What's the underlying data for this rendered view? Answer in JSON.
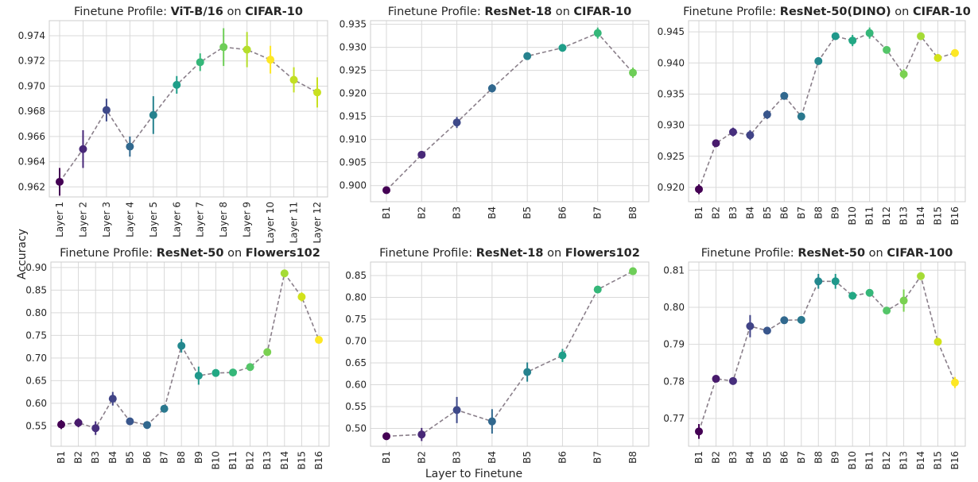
{
  "figure": {
    "ylabel": "Accuracy",
    "xlabel": "Layer to Finetune",
    "title_prefix": "Finetune Profile: ",
    "title_joiner": " on "
  },
  "colors": {
    "line": "#8a7f8a",
    "grid": "#d9d9d9",
    "axis_border": "#cccccc",
    "text": "#262626",
    "errorbar_note": "error bars drawn in the marker colour",
    "palette": "viridis"
  },
  "chart_data": [
    {
      "type": "line-errorbar",
      "title_model": "ViT-B/16",
      "title_dataset": "CIFAR-10",
      "categories": [
        "Layer 1",
        "Layer 2",
        "Layer 3",
        "Layer 4",
        "Layer 5",
        "Layer 6",
        "Layer 7",
        "Layer 8",
        "Layer 9",
        "Layer 10",
        "Layer 11",
        "Layer 12"
      ],
      "values": [
        0.9624,
        0.965,
        0.9681,
        0.9652,
        0.9677,
        0.9701,
        0.9719,
        0.9731,
        0.9729,
        0.9721,
        0.9705,
        0.9695
      ],
      "errors": [
        0.0011,
        0.0015,
        0.0009,
        0.0008,
        0.0015,
        0.0007,
        0.0007,
        0.0015,
        0.0014,
        0.0011,
        0.001,
        0.0012
      ],
      "colors": [
        "#440154",
        "#482878",
        "#3e4989",
        "#31688e",
        "#26828e",
        "#1f9e89",
        "#35b779",
        "#6ece58",
        "#b5de2b",
        "#fde725",
        "#c2df23",
        "#c8e020"
      ],
      "yticks": [
        0.962,
        0.964,
        0.966,
        0.968,
        0.97,
        0.972,
        0.974
      ],
      "ylim": [
        0.9612,
        0.9752
      ],
      "rotate_xticks": true,
      "grid": true
    },
    {
      "type": "line-errorbar",
      "title_model": "ResNet-18",
      "title_dataset": "CIFAR-10",
      "categories": [
        "B1",
        "B2",
        "B3",
        "B4",
        "B5",
        "B6",
        "B7",
        "B8"
      ],
      "values": [
        0.899,
        0.9067,
        0.9137,
        0.9211,
        0.9281,
        0.9299,
        0.9331,
        0.9245
      ],
      "errors": [
        0.0006,
        0.0005,
        0.0012,
        0.0009,
        0.0006,
        0.0005,
        0.0012,
        0.0011
      ],
      "colors": [
        "#440154",
        "#482878",
        "#3e4989",
        "#31688e",
        "#26828e",
        "#1f9e89",
        "#35b779",
        "#6ece58"
      ],
      "yticks": [
        0.9,
        0.905,
        0.91,
        0.915,
        0.92,
        0.925,
        0.93,
        0.935
      ],
      "ylim": [
        0.8965,
        0.9358
      ],
      "rotate_xticks": true,
      "grid": true
    },
    {
      "type": "line-errorbar",
      "title_model": "ResNet-50(DINO)",
      "title_dataset": "CIFAR-10",
      "categories": [
        "B1",
        "B2",
        "B3",
        "B4",
        "B5",
        "B6",
        "B7",
        "B8",
        "B9",
        "B10",
        "B11",
        "B12",
        "B13",
        "B14",
        "B15",
        "B16"
      ],
      "values": [
        0.9197,
        0.9271,
        0.9289,
        0.9284,
        0.9317,
        0.9347,
        0.9314,
        0.9403,
        0.9443,
        0.9436,
        0.9448,
        0.9421,
        0.9382,
        0.9443,
        0.9408,
        0.9416
      ],
      "errors": [
        0.0008,
        0.0005,
        0.0007,
        0.0008,
        0.0007,
        0.0005,
        0.0006,
        0.0004,
        0.0004,
        0.0009,
        0.0009,
        0.0004,
        0.0008,
        0.0004,
        0.0006,
        0.0005
      ],
      "colors": [
        "#440154",
        "#481a6c",
        "#472f7d",
        "#414487",
        "#39568c",
        "#31688e",
        "#2a788e",
        "#23888e",
        "#1f988b",
        "#22a884",
        "#35b779",
        "#54c568",
        "#7ad151",
        "#a5db36",
        "#d2e21b",
        "#fde725"
      ],
      "yticks": [
        0.92,
        0.925,
        0.93,
        0.935,
        0.94,
        0.945
      ],
      "ylim": [
        0.9177,
        0.9468
      ],
      "rotate_xticks": true,
      "grid": true
    },
    {
      "type": "line-errorbar",
      "title_model": "ResNet-50",
      "title_dataset": "Flowers102",
      "categories": [
        "B1",
        "B2",
        "B3",
        "B4",
        "B5",
        "B6",
        "B7",
        "B8",
        "B9",
        "B10",
        "B11",
        "B12",
        "B13",
        "B14",
        "B15",
        "B16"
      ],
      "values": [
        0.553,
        0.557,
        0.545,
        0.61,
        0.56,
        0.552,
        0.588,
        0.727,
        0.661,
        0.667,
        0.668,
        0.68,
        0.713,
        0.887,
        0.835,
        0.74
      ],
      "errors": [
        0.01,
        0.01,
        0.015,
        0.015,
        0.005,
        0.007,
        0.005,
        0.015,
        0.02,
        0.008,
        0.008,
        0.008,
        0.005,
        0.005,
        0.01,
        0.005
      ],
      "colors": [
        "#440154",
        "#481a6c",
        "#472f7d",
        "#414487",
        "#39568c",
        "#31688e",
        "#2a788e",
        "#23888e",
        "#1f988b",
        "#22a884",
        "#35b779",
        "#54c568",
        "#7ad151",
        "#a5db36",
        "#d2e21b",
        "#fde725"
      ],
      "yticks": [
        0.55,
        0.6,
        0.65,
        0.7,
        0.75,
        0.8,
        0.85,
        0.9
      ],
      "ylim": [
        0.505,
        0.912
      ],
      "rotate_xticks": true,
      "grid": true
    },
    {
      "type": "line-errorbar",
      "title_model": "ResNet-18",
      "title_dataset": "Flowers102",
      "categories": [
        "B1",
        "B2",
        "B3",
        "B4",
        "B5",
        "B6",
        "B7",
        "B8"
      ],
      "values": [
        0.482,
        0.486,
        0.542,
        0.516,
        0.629,
        0.667,
        0.818,
        0.86
      ],
      "errors": [
        0.008,
        0.015,
        0.03,
        0.028,
        0.022,
        0.015,
        0.008,
        0.005
      ],
      "colors": [
        "#440154",
        "#482878",
        "#3e4989",
        "#31688e",
        "#26828e",
        "#1f9e89",
        "#35b779",
        "#6ece58"
      ],
      "yticks": [
        0.5,
        0.55,
        0.6,
        0.65,
        0.7,
        0.75,
        0.8,
        0.85
      ],
      "ylim": [
        0.459,
        0.881
      ],
      "rotate_xticks": true,
      "grid": true
    },
    {
      "type": "line-errorbar",
      "title_model": "ResNet-50",
      "title_dataset": "CIFAR-100",
      "categories": [
        "B1",
        "B2",
        "B3",
        "B4",
        "B5",
        "B6",
        "B7",
        "B8",
        "B9",
        "B10",
        "B11",
        "B12",
        "B13",
        "B14",
        "B15",
        "B16"
      ],
      "values": [
        0.7665,
        0.7807,
        0.7801,
        0.7949,
        0.7937,
        0.7965,
        0.7966,
        0.807,
        0.807,
        0.8031,
        0.8039,
        0.7991,
        0.8018,
        0.8084,
        0.7907,
        0.7797
      ],
      "errors": [
        0.002,
        0.0005,
        0.0005,
        0.003,
        0.001,
        0.0005,
        0.001,
        0.002,
        0.002,
        0.001,
        0.0005,
        0.0005,
        0.003,
        0.001,
        0.001,
        0.0015
      ],
      "colors": [
        "#440154",
        "#481a6c",
        "#472f7d",
        "#414487",
        "#39568c",
        "#31688e",
        "#2a788e",
        "#23888e",
        "#1f988b",
        "#22a884",
        "#35b779",
        "#54c568",
        "#7ad151",
        "#a5db36",
        "#d2e21b",
        "#fde725"
      ],
      "yticks": [
        0.77,
        0.78,
        0.79,
        0.8,
        0.81
      ],
      "ylim": [
        0.7625,
        0.8122
      ],
      "rotate_xticks": true,
      "grid": true
    }
  ]
}
